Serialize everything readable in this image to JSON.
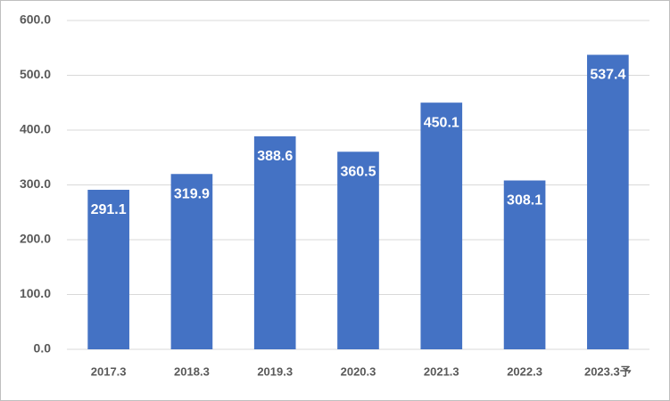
{
  "chart_data": {
    "type": "bar",
    "categories": [
      "2017.3",
      "2018.3",
      "2019.3",
      "2020.3",
      "2021.3",
      "2022.3",
      "2023.3予"
    ],
    "values": [
      291.1,
      319.9,
      388.6,
      360.5,
      450.1,
      308.1,
      537.4
    ],
    "color": "#4472c4",
    "ylim": [
      0,
      600
    ],
    "yticks": [
      {
        "value": 0,
        "label": "0.0"
      },
      {
        "value": 100,
        "label": "100.0"
      },
      {
        "value": 200,
        "label": "200.0"
      },
      {
        "value": 300,
        "label": "300.0"
      },
      {
        "value": 400,
        "label": "400.0"
      },
      {
        "value": 500,
        "label": "500.0"
      },
      {
        "value": 600,
        "label": "600.0"
      }
    ],
    "grid": true
  }
}
